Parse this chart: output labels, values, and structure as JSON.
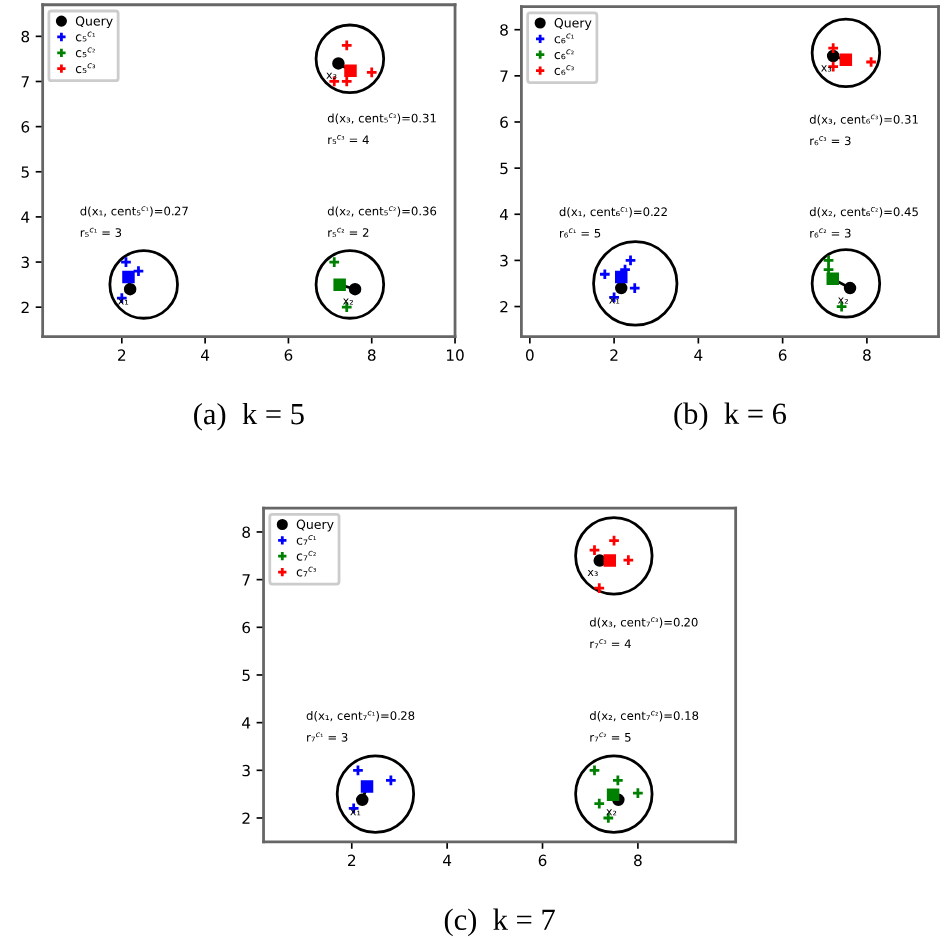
{
  "chart_data": [
    {
      "type": "scatter",
      "xlim": [
        0.1,
        10
      ],
      "ylim": [
        1.35,
        8.7
      ],
      "xticks": [
        2,
        4,
        6,
        8,
        10
      ],
      "yticks": [
        2,
        3,
        4,
        5,
        6,
        7,
        8
      ],
      "grid": false,
      "legend": "top left",
      "annotations": [
        "(a)  k = 5",
        "d(x₁, cent₅$^{c₁}$)=0.27",
        "r₅$^{c₁}$ = 3",
        "d(x₂, cent₅$^{c₂}$)=0.36",
        "r₅$^{c₂}$ = 2",
        "d(x₃, cent₅$^{c₃}$)=0.31",
        "r₅$^{c₃}$ = 4",
        {
          "text": "x₁",
          "x": 2.2,
          "y": 2.4
        },
        {
          "text": "x₂",
          "x": 7.6,
          "y": 2.4
        },
        {
          "text": "x₃",
          "x": 7.2,
          "y": 7.4
        }
      ],
      "series": [
        {
          "name": "Query",
          "type": "scatter",
          "marker": "circle",
          "color": "#000000",
          "x": [
            2.2,
            7.6,
            7.2
          ],
          "values": [
            2.4,
            2.4,
            7.4
          ]
        },
        {
          "name": "c₅$^{c₁}$",
          "type": "scatter",
          "marker": "cross",
          "color": "#0000ff",
          "x": [
            2.1,
            2.4,
            2.0
          ],
          "values": [
            3.0,
            2.8,
            2.2
          ]
        },
        {
          "name": "c₅$^{c₂}$",
          "type": "scatter",
          "marker": "cross",
          "color": "#008000",
          "x": [
            7.1,
            7.4
          ],
          "values": [
            3.0,
            2.0
          ]
        },
        {
          "name": "c₅$^{c₃}$",
          "type": "scatter",
          "marker": "cross",
          "color": "#ff0000",
          "x": [
            7.4,
            8.0,
            7.1,
            7.4
          ],
          "values": [
            7.8,
            7.2,
            7.0,
            7.0
          ]
        },
        {
          "type": "scatter",
          "marker": "square",
          "color": "#0000ff",
          "x": [
            2.16
          ],
          "values": [
            2.67
          ]
        },
        {
          "type": "scatter",
          "marker": "square",
          "color": "#008000",
          "x": [
            7.23
          ],
          "values": [
            2.5
          ]
        },
        {
          "type": "scatter",
          "marker": "square",
          "color": "#ff0000",
          "x": [
            7.49
          ],
          "values": [
            7.24
          ]
        }
      ]
    },
    {
      "type": "scatter",
      "xlim": [
        -0.2,
        9.7
      ],
      "ylim": [
        1.35,
        8.5
      ],
      "xticks": [
        0,
        2,
        4,
        6,
        8
      ],
      "yticks": [
        2,
        3,
        4,
        5,
        6,
        7,
        8
      ],
      "grid": false,
      "legend": "top left",
      "annotations": [
        "(b)  k = 6",
        "d(x₁, cent₆$^{c₁}$)=0.22",
        "r₆$^{c₁}$ = 5",
        "d(x₂, cent₆$^{c₂}$)=0.45",
        "r₆$^{c₂}$ = 3",
        "d(x₃, cent₆$^{c₃}$)=0.31",
        "r₆$^{c₃}$ = 3",
        {
          "text": "x₁",
          "x": 2.17,
          "y": 2.4
        },
        {
          "text": "x₂",
          "x": 7.6,
          "y": 2.4
        },
        {
          "text": "x₃",
          "x": 7.2,
          "y": 7.43
        }
      ],
      "series": [
        {
          "name": "Query",
          "type": "scatter",
          "marker": "circle",
          "color": "#000000",
          "x": [
            2.17,
            7.6,
            7.2
          ],
          "values": [
            2.4,
            2.4,
            7.43
          ]
        },
        {
          "name": "c₆$^{c₁}$",
          "type": "scatter",
          "marker": "cross",
          "color": "#0000ff",
          "x": [
            1.78,
            2.39,
            2.26,
            2.0,
            2.49
          ],
          "values": [
            2.7,
            3.0,
            2.8,
            2.2,
            2.4
          ]
        },
        {
          "name": "c₆$^{c₂}$",
          "type": "scatter",
          "marker": "cross",
          "color": "#008000",
          "x": [
            7.09,
            7.09,
            7.4
          ],
          "values": [
            3.0,
            2.8,
            2.0
          ]
        },
        {
          "name": "c₆$^{c₃}$",
          "type": "scatter",
          "marker": "cross",
          "color": "#ff0000",
          "x": [
            7.2,
            8.1,
            7.2
          ],
          "values": [
            7.6,
            7.3,
            7.2
          ]
        },
        {
          "type": "scatter",
          "marker": "square",
          "color": "#0000ff",
          "x": [
            2.17
          ],
          "values": [
            2.64
          ]
        },
        {
          "type": "scatter",
          "marker": "square",
          "color": "#008000",
          "x": [
            7.19
          ],
          "values": [
            2.6
          ]
        },
        {
          "type": "scatter",
          "marker": "square",
          "color": "#ff0000",
          "x": [
            7.5
          ],
          "values": [
            7.35
          ]
        }
      ]
    },
    {
      "type": "scatter",
      "xlim": [
        0.15,
        10.05
      ],
      "ylim": [
        1.5,
        8.5
      ],
      "xticks": [
        2,
        4,
        6,
        8
      ],
      "yticks": [
        2,
        3,
        4,
        5,
        6,
        7,
        8
      ],
      "grid": false,
      "legend": "top left",
      "annotations": [
        "(c)  k = 7",
        "d(x₁, cent₇$^{c₁}$)=0.28",
        "r₇$^{c₁}$ = 3",
        "d(x₂, cent₇$^{c₂}$)=0.18",
        "r₇$^{c₂}$ = 5",
        "d(x₃, cent₇$^{c₃}$)=0.20",
        "r₇$^{c₃}$ = 4",
        {
          "text": "x₁",
          "x": 2.22,
          "y": 2.38
        },
        {
          "text": "x₂",
          "x": 7.59,
          "y": 2.38
        },
        {
          "text": "x₃",
          "x": 7.2,
          "y": 7.4
        }
      ],
      "series": [
        {
          "name": "Query",
          "type": "scatter",
          "marker": "circle",
          "color": "#000000",
          "x": [
            2.22,
            7.59,
            7.2
          ],
          "values": [
            2.38,
            2.38,
            7.4
          ]
        },
        {
          "name": "c₇$^{c₁}$",
          "type": "scatter",
          "marker": "cross",
          "color": "#0000ff",
          "x": [
            2.13,
            2.82,
            2.04
          ],
          "values": [
            3.0,
            2.79,
            2.2
          ]
        },
        {
          "name": "c₇$^{c₂}$",
          "type": "scatter",
          "marker": "cross",
          "color": "#008000",
          "x": [
            7.09,
            7.58,
            8.0,
            7.19,
            7.38
          ],
          "values": [
            3.0,
            2.79,
            2.52,
            2.3,
            2.0
          ]
        },
        {
          "name": "c₇$^{c₃}$",
          "type": "scatter",
          "marker": "cross",
          "color": "#ff0000",
          "x": [
            7.09,
            7.5,
            7.8,
            7.19
          ],
          "values": [
            7.62,
            7.82,
            7.41,
            6.82
          ]
        },
        {
          "type": "scatter",
          "marker": "square",
          "color": "#0000ff",
          "x": [
            2.32
          ],
          "values": [
            2.66
          ]
        },
        {
          "type": "scatter",
          "marker": "square",
          "color": "#008000",
          "x": [
            7.48
          ],
          "values": [
            2.49
          ]
        },
        {
          "type": "scatter",
          "marker": "square",
          "color": "#ff0000",
          "x": [
            7.41
          ],
          "values": [
            7.4
          ]
        }
      ]
    }
  ]
}
